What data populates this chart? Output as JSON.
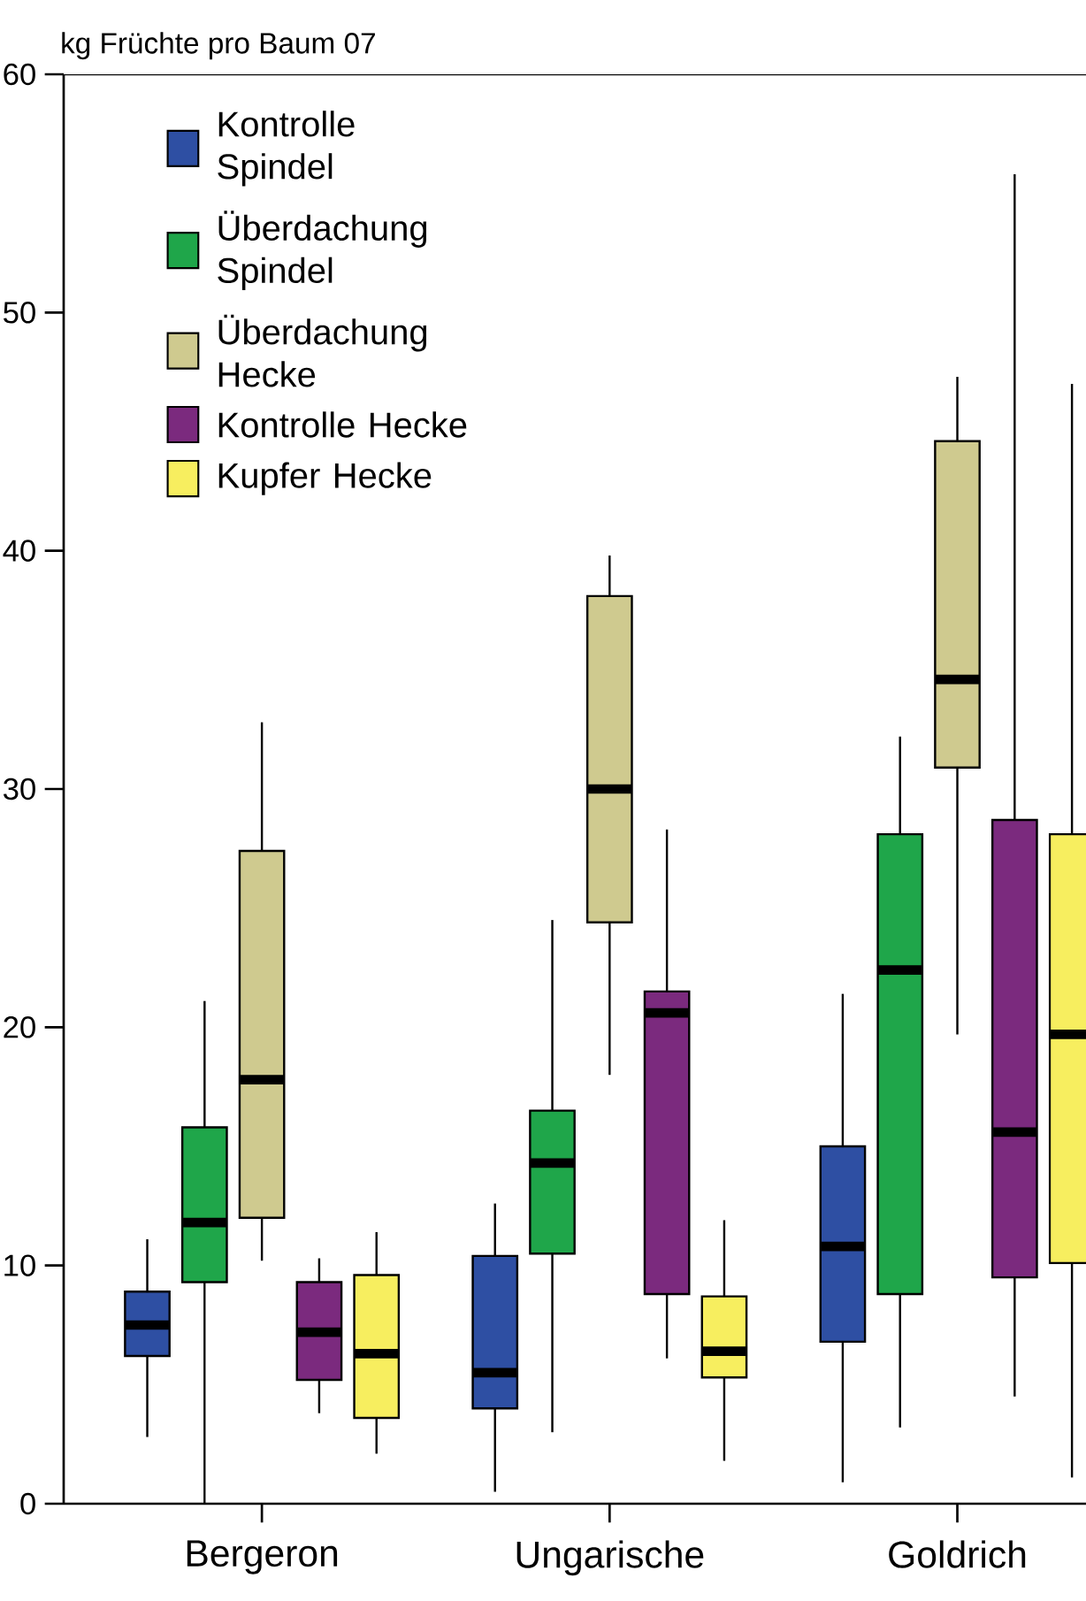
{
  "chart_data": {
    "type": "box",
    "ylabel": "kg Früchte pro Baum 07",
    "categories": [
      "Bergeron",
      "Ungarische",
      "Goldrich"
    ],
    "ylim": [
      0,
      60
    ],
    "yticks": [
      0,
      10,
      20,
      30,
      40,
      50,
      60
    ],
    "legend": "top left",
    "series": [
      {
        "name": "Kontrolle Spindel",
        "color": "#2e4fa3",
        "boxes": [
          {
            "low": 2.8,
            "q1": 6.2,
            "median": 7.5,
            "q3": 8.9,
            "high": 11.1
          },
          {
            "low": 0.5,
            "q1": 4.0,
            "median": 5.5,
            "q3": 10.4,
            "high": 12.6
          },
          {
            "low": 0.9,
            "q1": 6.8,
            "median": 10.8,
            "q3": 15.0,
            "high": 21.4
          }
        ]
      },
      {
        "name": "Überdachung Spindel",
        "color": "#1fa64a",
        "boxes": [
          {
            "low": 0,
            "q1": 9.3,
            "median": 11.8,
            "q3": 15.8,
            "high": 21.1
          },
          {
            "low": 3.0,
            "q1": 10.5,
            "median": 14.3,
            "q3": 16.5,
            "high": 24.5
          },
          {
            "low": 3.2,
            "q1": 8.8,
            "median": 22.4,
            "q3": 28.1,
            "high": 32.2
          }
        ]
      },
      {
        "name": "Überdachung Hecke",
        "color": "#cfca8f",
        "boxes": [
          {
            "low": 10.2,
            "q1": 12.0,
            "median": 17.8,
            "q3": 27.4,
            "high": 32.8
          },
          {
            "low": 18.0,
            "q1": 24.4,
            "median": 30.0,
            "q3": 38.1,
            "high": 39.8
          },
          {
            "low": 19.7,
            "q1": 30.9,
            "median": 34.6,
            "q3": 44.6,
            "high": 47.3
          }
        ]
      },
      {
        "name": "Kontrolle Hecke",
        "color": "#7b2a7e",
        "boxes": [
          {
            "low": 3.8,
            "q1": 5.2,
            "median": 7.2,
            "q3": 9.3,
            "high": 10.3
          },
          {
            "low": 6.1,
            "q1": 8.8,
            "median": 20.6,
            "q3": 21.5,
            "high": 28.3
          },
          {
            "low": 4.5,
            "q1": 9.5,
            "median": 15.6,
            "q3": 28.7,
            "high": 55.8
          }
        ]
      },
      {
        "name": "Kupfer Hecke",
        "color": "#f7ee5f",
        "boxes": [
          {
            "low": 2.1,
            "q1": 3.6,
            "median": 6.3,
            "q3": 9.6,
            "high": 11.4
          },
          {
            "low": 1.8,
            "q1": 5.3,
            "median": 6.4,
            "q3": 8.7,
            "high": 11.9
          },
          {
            "low": 1.1,
            "q1": 10.1,
            "median": 19.7,
            "q3": 28.1,
            "high": 47.0
          }
        ]
      }
    ]
  }
}
